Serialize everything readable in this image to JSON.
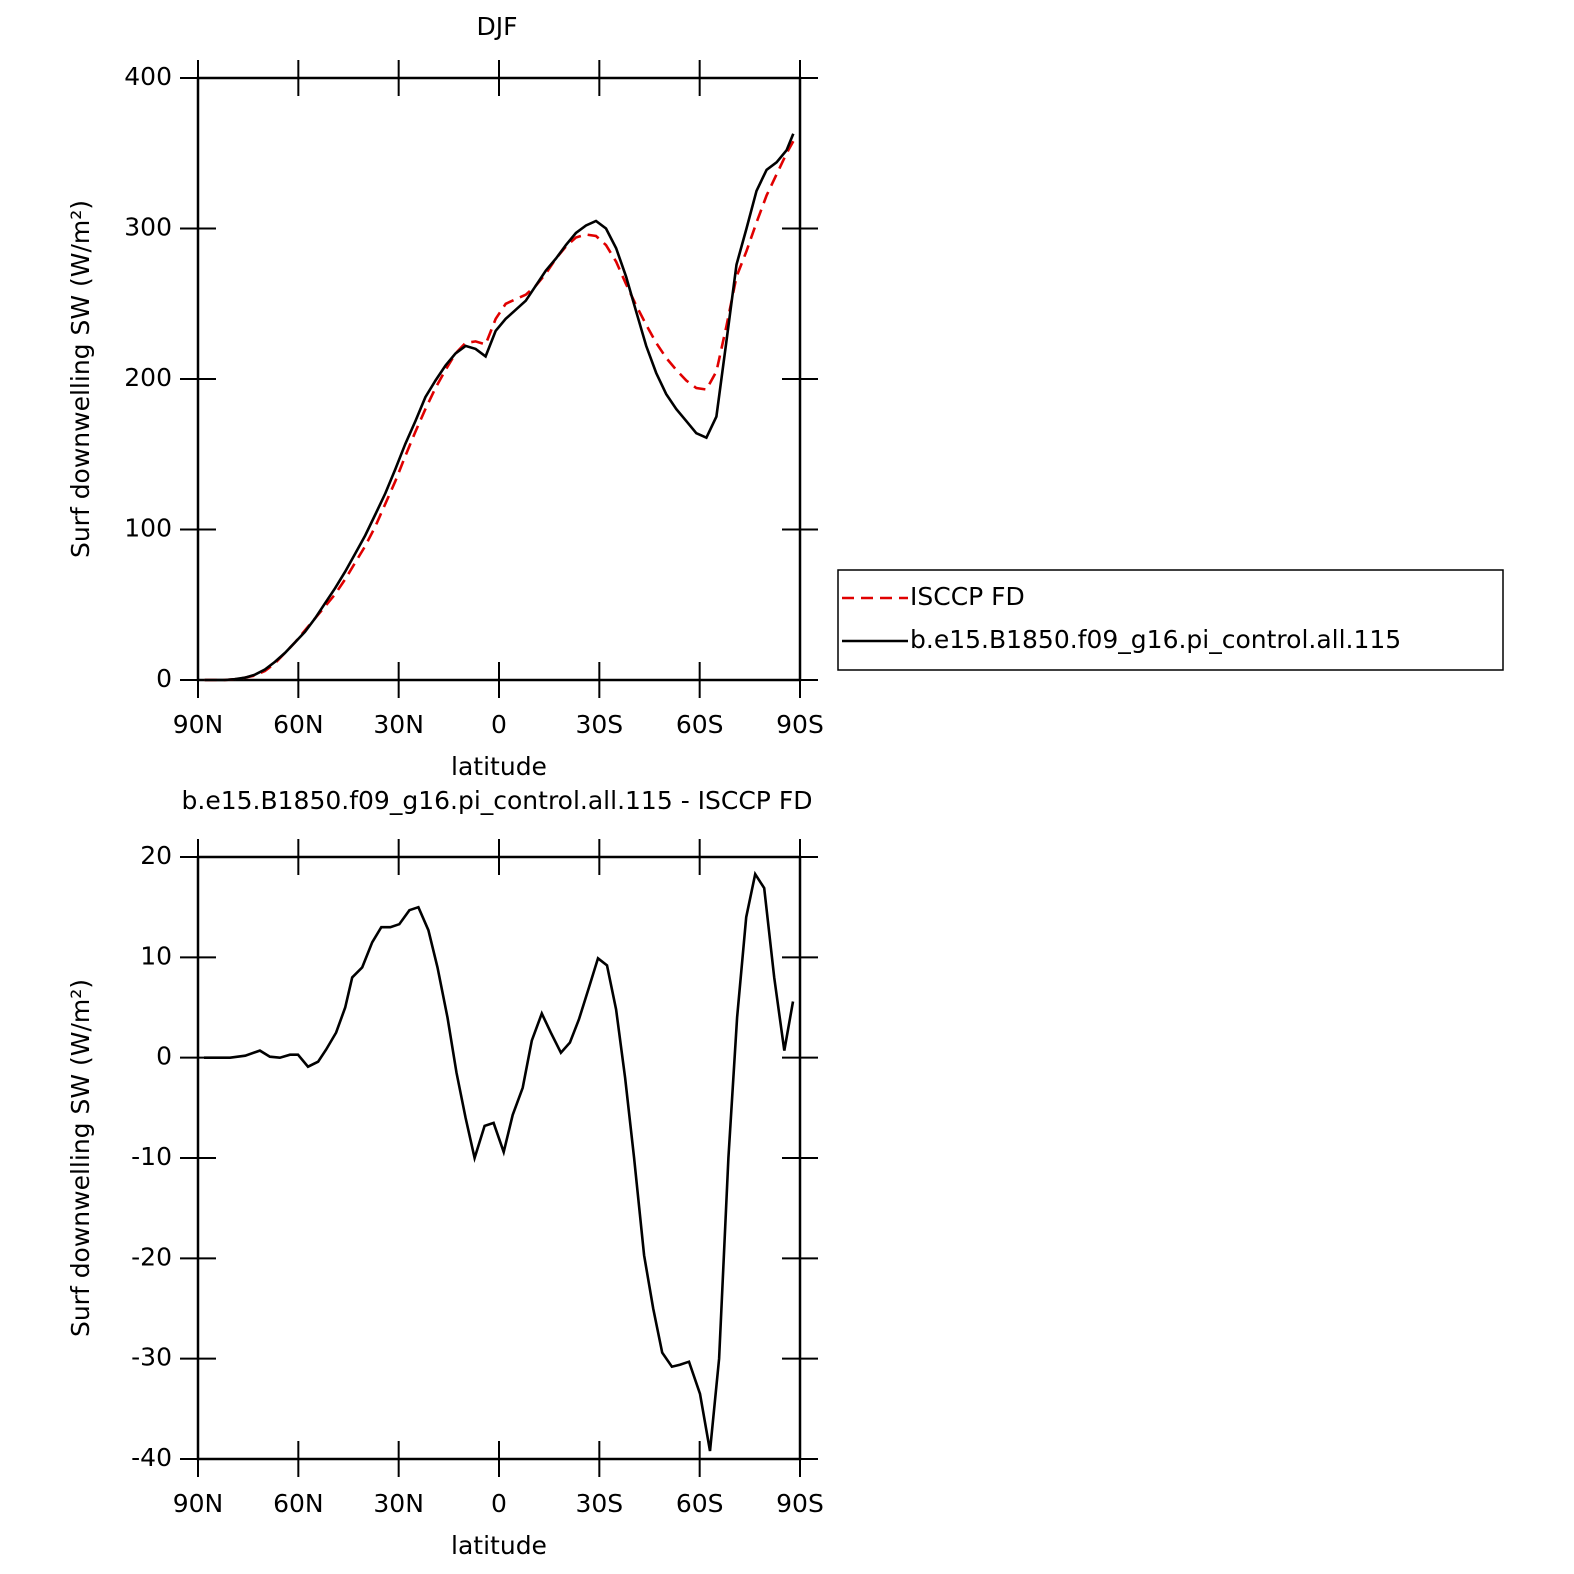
{
  "chart_data": [
    {
      "type": "line",
      "title": "DJF",
      "xlabel": "latitude",
      "ylabel": "Surf downwelling SW (W/m²)",
      "xlim": [
        90,
        -90
      ],
      "xticks": [
        {
          "value": 90,
          "label": "90N"
        },
        {
          "value": 60,
          "label": "60N"
        },
        {
          "value": 30,
          "label": "30N"
        },
        0,
        {
          "value": -30,
          "label": "30S"
        },
        {
          "value": -60,
          "label": "60S"
        },
        {
          "value": -90,
          "label": "90S"
        }
      ],
      "ylim": [
        0,
        400
      ],
      "yticks": [
        0,
        100,
        200,
        300,
        400
      ],
      "legend": "right",
      "x": [
        88,
        85,
        82,
        79,
        76,
        73,
        70,
        67,
        64,
        61,
        58,
        55,
        52,
        49,
        46,
        43,
        40,
        37,
        34,
        31,
        28,
        25,
        22,
        19,
        16,
        13,
        10,
        7,
        4,
        1,
        -2,
        -5,
        -8,
        -11,
        -14,
        -17,
        -20,
        -23,
        -26,
        -29,
        -32,
        -35,
        -38,
        -41,
        -44,
        -47,
        -50,
        -53,
        -56,
        -59,
        -62,
        -65,
        -68,
        -71,
        -74,
        -77,
        -80,
        -83,
        -86,
        -88
      ],
      "series": [
        {
          "name": "ISCCP FD",
          "color": "#e00000",
          "style": "dashed",
          "values": [
            0,
            0,
            0,
            0.5,
            1.5,
            3,
            6,
            11,
            18,
            25,
            33,
            41,
            49,
            57,
            67,
            78,
            89,
            102,
            117,
            132,
            149,
            165,
            180,
            194,
            206,
            217,
            224,
            225,
            223,
            240,
            250,
            253,
            256,
            262,
            270,
            280,
            288,
            294,
            296,
            295,
            289,
            278,
            263,
            249,
            236,
            224,
            214,
            206,
            199,
            194,
            193,
            205,
            235,
            268,
            285,
            304,
            322,
            336,
            350,
            358
          ]
        },
        {
          "name": "b.e15.B1850.f09_g16.pi_control.all.115",
          "color": "#000000",
          "style": "solid",
          "values": [
            0,
            0,
            0,
            0.5,
            1.5,
            3.5,
            7,
            12,
            18,
            25,
            32,
            41,
            51,
            61,
            72,
            84,
            96,
            110,
            124,
            140,
            157,
            172,
            188,
            199,
            209,
            217,
            222,
            220,
            215,
            232,
            240,
            246,
            252,
            262,
            272,
            280,
            289,
            297,
            302,
            305,
            300,
            287,
            268,
            245,
            222,
            204,
            190,
            180,
            172,
            164,
            161,
            175,
            225,
            276,
            300,
            325,
            339,
            344,
            352,
            363
          ]
        }
      ]
    },
    {
      "type": "line",
      "title": "b.e15.B1850.f09_g16.pi_control.all.115 - ISCCP FD",
      "xlabel": "latitude",
      "ylabel": "Surf downwelling SW (W/m²)",
      "xlim": [
        90,
        -90
      ],
      "xticks": [
        {
          "value": 90,
          "label": "90N"
        },
        {
          "value": 60,
          "label": "60N"
        },
        {
          "value": 30,
          "label": "30N"
        },
        0,
        {
          "value": -30,
          "label": "30S"
        },
        {
          "value": -60,
          "label": "60S"
        },
        {
          "value": -90,
          "label": "90S"
        }
      ],
      "ylim": [
        -40,
        20
      ],
      "yticks": [
        -40,
        -30,
        -20,
        -10,
        0,
        10,
        20
      ],
      "color": "#000000",
      "x": [
        88.2,
        80.4,
        75.9,
        71.5,
        68.5,
        65.5,
        62.5,
        60.1,
        57.1,
        54.1,
        51.7,
        48.7,
        46.0,
        43.9,
        40.9,
        37.9,
        35.2,
        32.5,
        29.8,
        26.8,
        24.1,
        21.1,
        18.4,
        15.4,
        12.7,
        10.0,
        7.3,
        4.3,
        1.6,
        -1.4,
        -4.1,
        -7.1,
        -9.8,
        -12.8,
        -15.5,
        -18.5,
        -21.2,
        -23.9,
        -26.9,
        -29.6,
        -32.3,
        -35.0,
        -37.7,
        -40.4,
        -43.4,
        -46.1,
        -48.8,
        -51.7,
        -54.1,
        -56.8,
        -60.1,
        -63.1,
        -65.8,
        -68.6,
        -71.2,
        -73.9,
        -76.6,
        -79.3,
        -82.3,
        -85.3,
        -87.9
      ],
      "values": [
        0,
        0,
        0.2,
        0.7,
        0.1,
        0,
        0.3,
        0.3,
        -0.9,
        -0.4,
        0.8,
        2.5,
        5,
        8,
        9,
        11.5,
        13,
        13,
        13.3,
        14.7,
        15,
        12.7,
        9,
        4,
        -1.5,
        -6,
        -10,
        -6.8,
        -6.5,
        -9.4,
        -5.7,
        -3,
        1.7,
        4.4,
        2.5,
        0.5,
        1.5,
        3.8,
        7,
        9.9,
        9.2,
        4.8,
        -2,
        -10,
        -19.7,
        -25,
        -29.4,
        -30.8,
        -30.6,
        -30.3,
        -33.5,
        -39.2,
        -30,
        -10,
        4,
        14,
        18.3,
        16.9,
        8,
        0.7,
        5.6
      ]
    }
  ]
}
